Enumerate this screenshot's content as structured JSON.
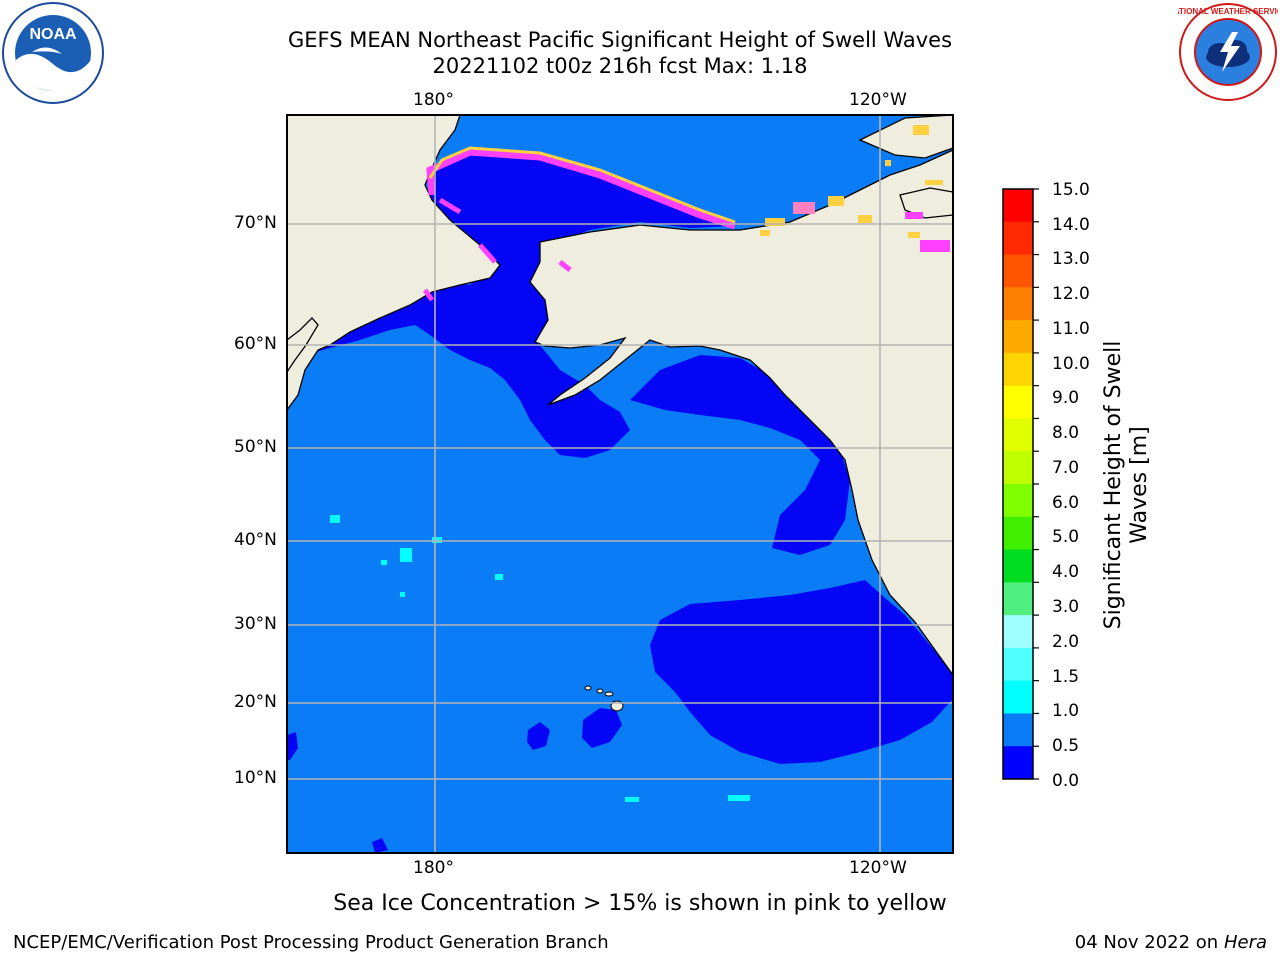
{
  "header": {
    "title_line1": "GEFS MEAN Northeast Pacific Significant Height of Swell Waves",
    "title_line2": "20221102 t00z 216h fcst   Max: 1.18"
  },
  "logos": {
    "left_icon": "noaa-logo",
    "left_text": "NOAA",
    "right_icon": "national-weather-service-logo",
    "right_text": "NATIONAL WEATHER SERVICE"
  },
  "map": {
    "lon_labels_top": [
      "180°",
      "120°W"
    ],
    "lon_labels_bottom": [
      "180°",
      "120°W"
    ],
    "lat_labels": [
      "70°N",
      "60°N",
      "50°N",
      "40°N",
      "30°N",
      "20°N",
      "10°N"
    ],
    "colors": {
      "ocean": "#0a7cf6",
      "low_swell": "#0505f5",
      "land": "#efedde",
      "ice_pink": "#ff40ff",
      "ice_yellow": "#ffd040",
      "grid": "#b4b4b4"
    }
  },
  "colorbar": {
    "title": "Significant Height of Swell Waves [m]",
    "title_line1": "Significant Height of Swell",
    "title_line2": "Waves [m]",
    "levels": [
      "15.0",
      "14.0",
      "13.0",
      "12.0",
      "11.0",
      "10.0",
      "9.0",
      "8.0",
      "7.0",
      "6.0",
      "5.0",
      "4.0",
      "3.0",
      "2.0",
      "1.5",
      "1.0",
      "0.5",
      "0.0"
    ],
    "colors_top_to_bottom": [
      "#ff0000",
      "#ff2a00",
      "#ff5500",
      "#ff8000",
      "#ffaa00",
      "#ffd400",
      "#ffff00",
      "#e0ff00",
      "#c0ff00",
      "#80ff00",
      "#40ee00",
      "#00dd20",
      "#50f080",
      "#a0ffff",
      "#50ffff",
      "#00ffff",
      "#0a7cf6",
      "#0000ff"
    ]
  },
  "notes": {
    "sea_ice": "Sea Ice Concentration > 15% is shown in pink to yellow"
  },
  "footer": {
    "left": "NCEP/EMC/Verification Post Processing Product Generation Branch",
    "right_date": "04 Nov 2022 on",
    "right_machine": "Hera"
  }
}
